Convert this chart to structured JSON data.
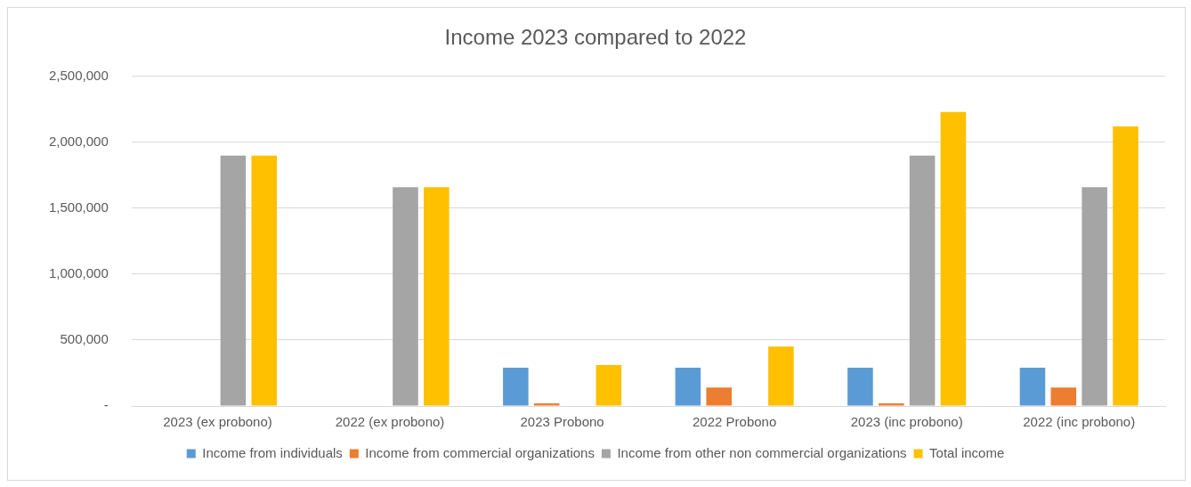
{
  "chart_data": {
    "type": "bar",
    "title": "Income 2023 compared to 2022",
    "categories": [
      "2023 (ex probono)",
      "2022 (ex probono)",
      "2023 Probono",
      "2022 Probono",
      "2023 (inc probono)",
      "2022 (inc probono)"
    ],
    "series": [
      {
        "name": "Income from individuals",
        "color": "#5b9bd5",
        "values": [
          null,
          null,
          290000,
          290000,
          290000,
          290000
        ]
      },
      {
        "name": "Income from commercial organizations",
        "color": "#ed7d31",
        "values": [
          null,
          null,
          20000,
          140000,
          20000,
          140000
        ]
      },
      {
        "name": "Income from other non commercial organizations",
        "color": "#a5a5a5",
        "values": [
          1900000,
          1660000,
          null,
          null,
          1900000,
          1660000
        ]
      },
      {
        "name": "Total income",
        "color": "#ffc000",
        "values": [
          1900000,
          1660000,
          310000,
          450000,
          2230000,
          2120000
        ]
      }
    ],
    "ylim": [
      0,
      2500000
    ],
    "yticks": [
      {
        "value": 0,
        "label": "-"
      },
      {
        "value": 500000,
        "label": "500,000"
      },
      {
        "value": 1000000,
        "label": "1,000,000"
      },
      {
        "value": 1500000,
        "label": "1,500,000"
      },
      {
        "value": 2000000,
        "label": "2,000,000"
      },
      {
        "value": 2500000,
        "label": "2,500,000"
      }
    ],
    "grid": "y",
    "legend": "bottom"
  }
}
